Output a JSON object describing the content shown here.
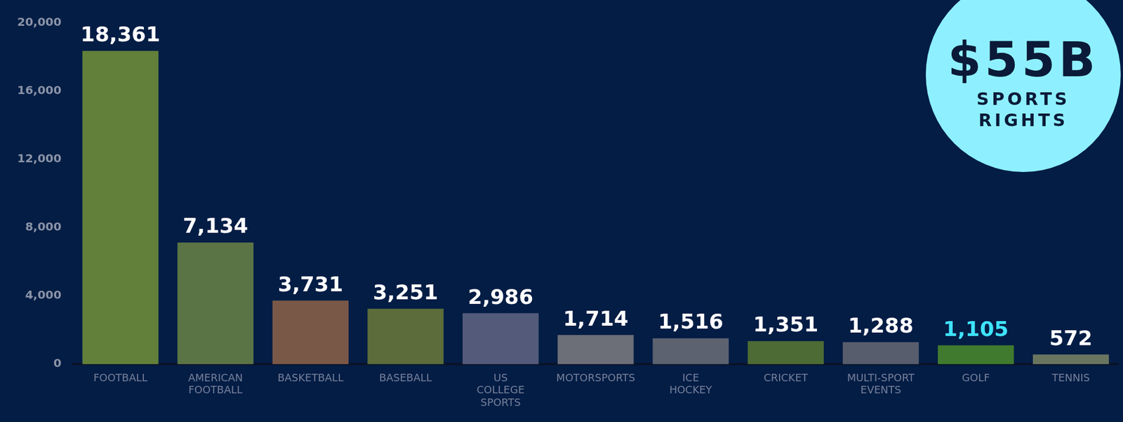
{
  "chart_data": {
    "type": "bar",
    "categories": [
      "FOOTBALL",
      "AMERICAN FOOTBALL",
      "BASKETBALL",
      "BASEBALL",
      "US COLLEGE SPORTS",
      "MOTORSPORTS",
      "ICE HOCKEY",
      "CRICKET",
      "MULTI-SPORT EVENTS",
      "GOLF",
      "TENNIS"
    ],
    "values": [
      18361,
      7134,
      3731,
      3251,
      2986,
      1714,
      1516,
      1351,
      1288,
      1105,
      572
    ],
    "value_labels": [
      "18,361",
      "7,134",
      "3,731",
      "3,251",
      "2,986",
      "1,714",
      "1,516",
      "1,351",
      "1,288",
      "1,105",
      "572"
    ],
    "colors": [
      "#62803a",
      "#5b7446",
      "#7a5848",
      "#5c6c3a",
      "#545a7a",
      "#6c6e78",
      "#5c6270",
      "#4d6b34",
      "#585d6e",
      "#3f7a2e",
      "#6a7560"
    ],
    "ylim": [
      0,
      20000
    ],
    "yticks": [
      0,
      {
        "value": 4000,
        "label": "4,000"
      },
      {
        "value": 8000,
        "label": "8,000"
      },
      {
        "value": 12000,
        "label": "12,000"
      },
      {
        "value": 16000,
        "label": "16,000"
      },
      {
        "value": 20000,
        "label": "20,000"
      }
    ],
    "grid": false,
    "data_labels": true,
    "annotations": [
      "$55B",
      "SPORTS RIGHTS"
    ]
  }
}
